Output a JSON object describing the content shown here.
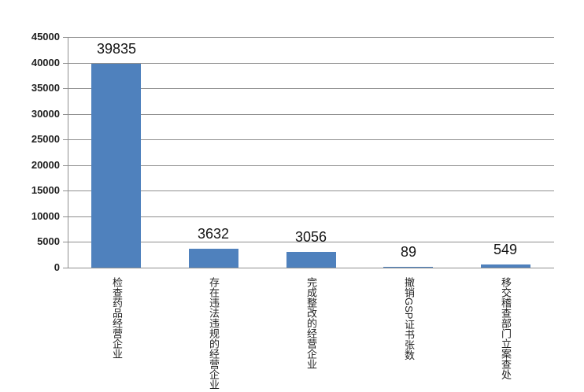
{
  "chart_data": {
    "type": "bar",
    "title": "",
    "xlabel": "",
    "ylabel": "",
    "categories": [
      "检查药品经营企业",
      "存在违法违规的经营企业",
      "完成整改的经营企业",
      "撤销GSP证书张数",
      "移交稽查部门立案查处"
    ],
    "values": [
      39835,
      3632,
      3056,
      89,
      549
    ],
    "value_labels": [
      "39835",
      "3632",
      "3056",
      "89",
      "549"
    ],
    "ylim": [
      0,
      45000
    ],
    "ytick_step": 5000,
    "yticks": [
      0,
      5000,
      10000,
      15000,
      20000,
      25000,
      30000,
      35000,
      40000,
      45000
    ],
    "grid": true,
    "legend": false,
    "colors": {
      "bar_fill": "#4F81BD",
      "gridline": "#8F8F8F",
      "axis_line": "#8F8F8F",
      "value_label_text": "#141414",
      "axis_label_text": "#1F1F1F",
      "background": "#FFFFFF"
    }
  }
}
